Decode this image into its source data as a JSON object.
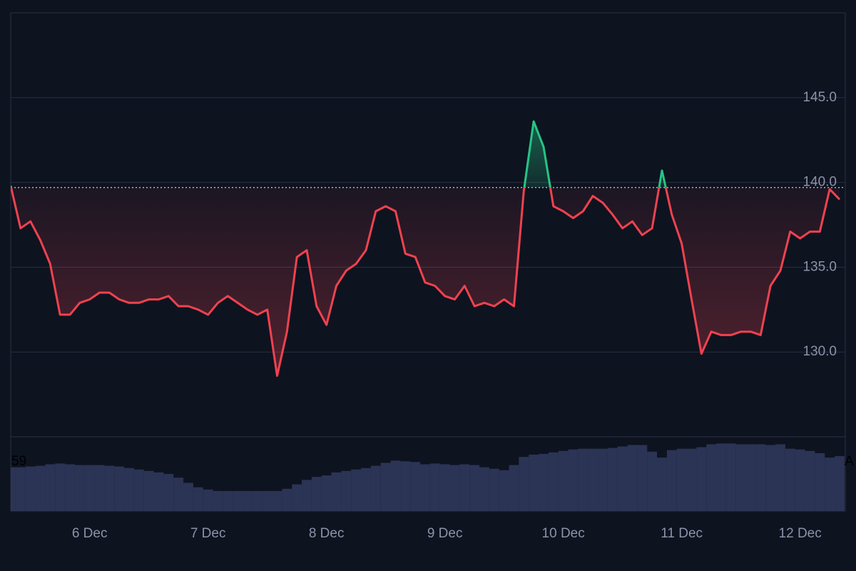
{
  "chart_data": {
    "type": "baseline",
    "categories": [
      null,
      null,
      null,
      null,
      null,
      null,
      null,
      null,
      "6 Dec",
      null,
      null,
      null,
      null,
      null,
      null,
      null,
      null,
      null,
      null,
      null,
      "7 Dec",
      null,
      null,
      null,
      null,
      null,
      null,
      null,
      null,
      null,
      null,
      null,
      "8 Dec",
      null,
      null,
      null,
      null,
      null,
      null,
      null,
      null,
      null,
      null,
      null,
      "9 Dec",
      null,
      null,
      null,
      null,
      null,
      null,
      null,
      null,
      null,
      null,
      null,
      "10 Dec",
      null,
      null,
      null,
      null,
      null,
      null,
      null,
      null,
      null,
      null,
      null,
      "11 Dec",
      null,
      null,
      null,
      null,
      null,
      null,
      null,
      null,
      null,
      null,
      null,
      "12 Dec",
      null,
      null,
      null,
      null
    ],
    "series": [
      {
        "color": "#f0424f",
        "above_color": "#26c485",
        "values": [
          139.8,
          137.3,
          137.7,
          136.6,
          135.2,
          132.2,
          132.2,
          132.9,
          133.1,
          133.5,
          133.5,
          133.1,
          132.9,
          132.9,
          133.1,
          133.1,
          133.3,
          132.7,
          132.7,
          132.5,
          132.2,
          132.9,
          133.3,
          132.9,
          132.5,
          132.2,
          132.5,
          128.6,
          131.2,
          135.6,
          136.0,
          132.7,
          131.6,
          133.9,
          134.8,
          135.2,
          136.0,
          138.3,
          138.6,
          138.3,
          135.8,
          135.6,
          134.1,
          133.9,
          133.3,
          133.1,
          133.9,
          132.7,
          132.9,
          132.7,
          133.1,
          132.7,
          139.5,
          143.6,
          142.1,
          138.6,
          138.3,
          137.9,
          138.3,
          139.2,
          138.8,
          138.1,
          137.3,
          137.7,
          136.9,
          137.3,
          140.7,
          138.1,
          136.4,
          133.1,
          129.9,
          131.2,
          131.0,
          131.0,
          131.2,
          131.2,
          131.0,
          133.9,
          134.8,
          137.1,
          136.7,
          137.1,
          137.1,
          139.6,
          139.0
        ]
      }
    ],
    "baseline": 139.7,
    "ylim": [
      125,
      150
    ],
    "yticks": [
      {
        "value": 130,
        "label": "130.0"
      },
      {
        "value": 135,
        "label": "135.0"
      },
      {
        "value": 140,
        "label": "140.0"
      },
      {
        "value": 145,
        "label": "145.0"
      }
    ],
    "grid": true,
    "volume": {
      "color": "#2b3455",
      "ylim": [
        0,
        100
      ],
      "values": [
        59,
        59,
        60,
        61,
        63,
        64,
        63,
        62,
        62,
        62,
        61,
        60,
        58,
        56,
        54,
        52,
        50,
        45,
        38,
        32,
        29,
        27,
        27,
        27,
        27,
        27,
        27,
        27,
        30,
        36,
        42,
        46,
        48,
        52,
        54,
        56,
        58,
        61,
        65,
        68,
        67,
        66,
        63,
        64,
        63,
        62,
        63,
        62,
        59,
        57,
        55,
        62,
        73,
        76,
        77,
        79,
        81,
        83,
        84,
        84,
        84,
        85,
        87,
        89,
        89,
        80,
        72,
        82,
        84,
        84,
        86,
        90,
        91,
        91,
        90,
        90,
        90,
        89,
        90,
        84,
        83,
        81,
        78,
        72,
        74
      ]
    },
    "annotations": [
      "59",
      "A"
    ]
  }
}
